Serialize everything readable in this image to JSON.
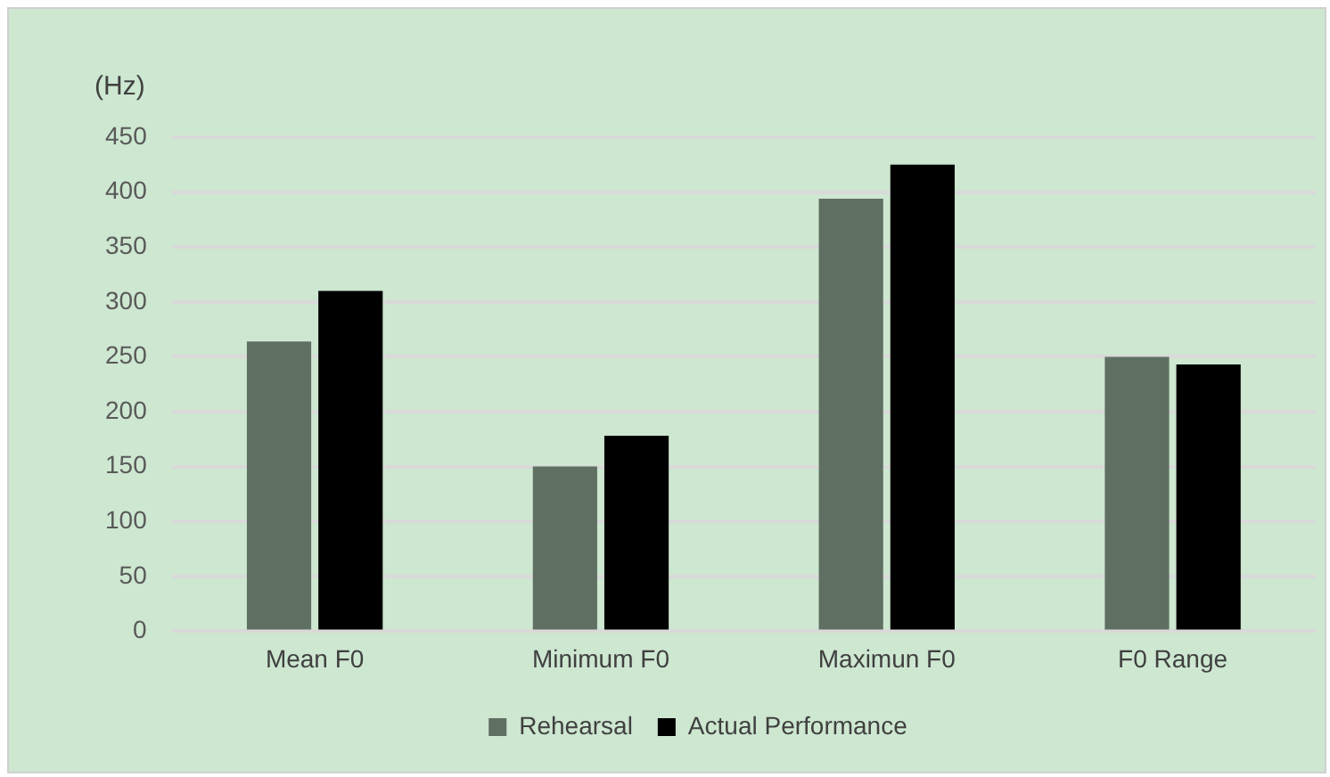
{
  "chart_data": {
    "type": "bar",
    "ylabel": "(Hz)",
    "categories": [
      "Mean F0",
      "Minimum F0",
      "Maximun F0",
      "F0 Range"
    ],
    "series": [
      {
        "name": "Rehearsal",
        "color": "#5f6f62",
        "values": [
          264,
          150,
          394,
          250
        ]
      },
      {
        "name": "Actual Performance",
        "color": "#000000",
        "values": [
          310,
          178,
          425,
          243
        ]
      }
    ],
    "ylim": [
      0,
      450
    ],
    "yticks": [
      0,
      50,
      100,
      150,
      200,
      250,
      300,
      350,
      400,
      450
    ],
    "grid": "y",
    "legend": "bottom"
  }
}
